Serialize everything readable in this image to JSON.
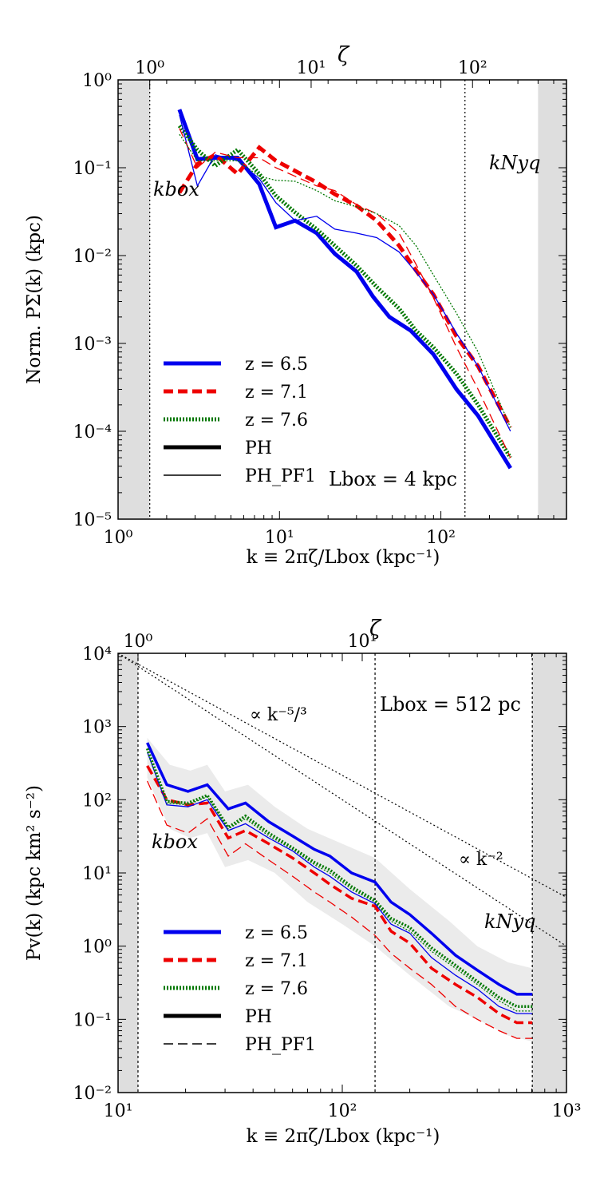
{
  "chart_data": [
    {
      "type": "line",
      "x_scale": "log",
      "y_scale": "log",
      "xlim": [
        1,
        600
      ],
      "ylim": [
        1e-05,
        1
      ],
      "xlabel": "k ≡ 2πζ/Lbox (kpc⁻¹)",
      "ylabel": "Norm. PΣ(k) (kpc)",
      "top_axis_label": "ζ",
      "top_axis_ticks": [
        "10⁰",
        "10¹",
        "10²"
      ],
      "x_ticks": [
        "10⁰",
        "10¹",
        "10²"
      ],
      "y_ticks": [
        "10⁻⁵",
        "10⁻⁴",
        "10⁻³",
        "10⁻²",
        "10⁻¹",
        "10⁰"
      ],
      "k_box": 1.571,
      "k_nyq": 141,
      "label_kbox": "kbox",
      "label_knyq": "kNyq",
      "annotation": "Lbox = 4 kpc",
      "legend": [
        {
          "label": "z = 6.5",
          "color": "#0000ee",
          "style": "solid",
          "width": "thick"
        },
        {
          "label": "z = 7.1",
          "color": "#ee0000",
          "style": "dashed",
          "width": "thick"
        },
        {
          "label": "z = 7.6",
          "color": "#007700",
          "style": "dotted",
          "width": "thick"
        },
        {
          "label": "PH",
          "color": "#000000",
          "style": "solid",
          "width": "thick"
        },
        {
          "label": "PH_PF1",
          "color": "#000000",
          "style": "solid",
          "width": "thin"
        }
      ],
      "legend_position": "lower-left",
      "series": [
        {
          "name": "z = 6.5",
          "run": "PH",
          "color": "#0000ee",
          "style": "solid",
          "width": 5,
          "x": [
            2.4,
            3.1,
            4.0,
            5.5,
            7.5,
            9.5,
            12.5,
            17,
            22,
            30,
            38,
            48,
            65,
            90,
            125,
            170,
            270
          ],
          "y": [
            0.46,
            0.125,
            0.13,
            0.13,
            0.065,
            0.021,
            0.025,
            0.018,
            0.0105,
            0.0066,
            0.0034,
            0.002,
            0.0014,
            0.00075,
            0.0003,
            0.00015,
            3.8e-05
          ]
        },
        {
          "name": "z = 7.1",
          "run": "PH",
          "color": "#ee0000",
          "style": "dashed",
          "width": 5,
          "x": [
            2.4,
            3.1,
            4.0,
            5.5,
            7.5,
            9.5,
            12.5,
            17,
            22,
            30,
            40,
            55,
            70,
            90,
            125,
            170,
            270
          ],
          "y": [
            0.052,
            0.11,
            0.14,
            0.085,
            0.17,
            0.12,
            0.092,
            0.068,
            0.05,
            0.037,
            0.025,
            0.013,
            0.0068,
            0.0036,
            0.0012,
            0.00055,
            0.00011
          ]
        },
        {
          "name": "z = 7.6",
          "run": "PH",
          "color": "#007700",
          "style": "dotted",
          "width": 5,
          "x": [
            2.4,
            3.1,
            4.0,
            5.5,
            7.5,
            9.5,
            12.5,
            17,
            22,
            30,
            40,
            55,
            70,
            90,
            125,
            170,
            270
          ],
          "y": [
            0.3,
            0.16,
            0.105,
            0.16,
            0.085,
            0.048,
            0.031,
            0.02,
            0.013,
            0.0077,
            0.0044,
            0.0025,
            0.0014,
            0.0009,
            0.00045,
            0.0002,
            5e-05
          ]
        },
        {
          "name": "z = 6.5",
          "run": "PH_PF1",
          "color": "#0000ee",
          "style": "solid",
          "width": 1.3,
          "x": [
            2.4,
            3.1,
            4.0,
            5.5,
            7.5,
            9.5,
            12.5,
            17,
            22,
            30,
            40,
            55,
            70,
            90,
            125,
            170,
            270
          ],
          "y": [
            0.4,
            0.062,
            0.14,
            0.12,
            0.075,
            0.04,
            0.025,
            0.028,
            0.02,
            0.018,
            0.016,
            0.011,
            0.0065,
            0.0036,
            0.0013,
            0.00055,
            0.0001
          ]
        },
        {
          "name": "z = 7.1",
          "run": "PH_PF1",
          "color": "#ee0000",
          "style": "dashed",
          "width": 1.3,
          "x": [
            2.4,
            3.1,
            4.0,
            5.5,
            7.5,
            9.5,
            12.5,
            17,
            22,
            30,
            40,
            55,
            70,
            90,
            125,
            170,
            270
          ],
          "y": [
            0.28,
            0.1,
            0.15,
            0.13,
            0.13,
            0.1,
            0.08,
            0.062,
            0.055,
            0.038,
            0.03,
            0.018,
            0.008,
            0.0033,
            0.0009,
            0.0003,
            5e-05
          ]
        },
        {
          "name": "z = 7.6",
          "run": "PH_PF1",
          "color": "#007700",
          "style": "dotted",
          "width": 1.3,
          "x": [
            2.4,
            3.1,
            4.0,
            5.5,
            7.5,
            9.5,
            12.5,
            17,
            22,
            30,
            40,
            55,
            70,
            90,
            125,
            170,
            270
          ],
          "y": [
            0.24,
            0.12,
            0.12,
            0.12,
            0.08,
            0.072,
            0.07,
            0.055,
            0.042,
            0.036,
            0.03,
            0.022,
            0.013,
            0.006,
            0.0022,
            0.0008,
            0.00011
          ]
        }
      ]
    },
    {
      "type": "line",
      "x_scale": "log",
      "y_scale": "log",
      "xlim": [
        10,
        1000
      ],
      "ylim": [
        0.01,
        10000
      ],
      "xlabel": "k ≡ 2πζ/Lbox (kpc⁻¹)",
      "ylabel": "Pv(k) (kpc km² s⁻²)",
      "top_axis_label": "ζ",
      "top_axis_ticks": [
        "10⁰",
        "10¹"
      ],
      "x_ticks": [
        "10¹",
        "10²",
        "10³"
      ],
      "y_ticks": [
        "10⁻²",
        "10⁻¹",
        "10⁰",
        "10¹",
        "10²",
        "10³",
        "10⁴"
      ],
      "k_box": 12.27,
      "k_nyq": 704,
      "k_mid": 140,
      "label_kbox": "kbox",
      "label_knyq": "kNyq",
      "annotation": "Lbox = 512 pc",
      "reference_lines": [
        {
          "label": "∝ k⁻⁵/³",
          "slope": -1.6667,
          "x0": 10,
          "y0": 10000
        },
        {
          "label": "∝ k⁻²",
          "slope": -2,
          "x0": 10,
          "y0": 10000
        }
      ],
      "legend": [
        {
          "label": "z = 6.5",
          "color": "#0000ee",
          "style": "solid",
          "width": "thick"
        },
        {
          "label": "z = 7.1",
          "color": "#ee0000",
          "style": "dashed",
          "width": "thick"
        },
        {
          "label": "z = 7.6",
          "color": "#007700",
          "style": "dotted",
          "width": "thick"
        },
        {
          "label": "PH",
          "color": "#000000",
          "style": "solid",
          "width": "thick"
        },
        {
          "label": "PH_PF1",
          "color": "#000000",
          "style": "dashed",
          "width": "thin"
        }
      ],
      "legend_position": "lower-left",
      "shaded_band": {
        "x": [
          13.5,
          17,
          21,
          25,
          30,
          38,
          50,
          70,
          100,
          140,
          200,
          300,
          400,
          550,
          700
        ],
        "upper": [
          700,
          300,
          250,
          300,
          130,
          160,
          80,
          40,
          25,
          16,
          6,
          2.2,
          1,
          0.6,
          0.5
        ],
        "lower": [
          200,
          40,
          30,
          35,
          12,
          15,
          10,
          4,
          2,
          1,
          0.4,
          0.15,
          0.1,
          0.06,
          0.05
        ]
      },
      "series": [
        {
          "name": "z = 6.5",
          "run": "PH",
          "color": "#0000ee",
          "style": "solid",
          "width": 3.5,
          "x": [
            13.5,
            16.5,
            20.5,
            25,
            31,
            37,
            47,
            60,
            75,
            88,
            110,
            140,
            165,
            200,
            250,
            320,
            400,
            500,
            600,
            704
          ],
          "y": [
            600,
            160,
            130,
            160,
            75,
            90,
            50,
            32,
            21,
            17,
            10,
            7.5,
            4,
            2.7,
            1.5,
            0.75,
            0.47,
            0.3,
            0.22,
            0.22
          ]
        },
        {
          "name": "z = 7.1",
          "run": "PH",
          "color": "#ee0000",
          "style": "dashed",
          "width": 3.5,
          "x": [
            13.5,
            16.5,
            20.5,
            25,
            31,
            37,
            47,
            60,
            75,
            88,
            110,
            140,
            165,
            200,
            250,
            320,
            400,
            500,
            600,
            704
          ],
          "y": [
            290,
            100,
            85,
            90,
            30,
            38,
            25,
            16,
            10,
            7,
            4.5,
            3.5,
            1.6,
            1.1,
            0.5,
            0.3,
            0.2,
            0.12,
            0.09,
            0.09
          ]
        },
        {
          "name": "z = 7.6",
          "run": "PH",
          "color": "#007700",
          "style": "dotted",
          "width": 3.5,
          "x": [
            13.5,
            16.5,
            20.5,
            25,
            31,
            37,
            47,
            60,
            75,
            88,
            110,
            140,
            165,
            200,
            250,
            320,
            400,
            500,
            600,
            704
          ],
          "y": [
            500,
            95,
            90,
            115,
            42,
            60,
            35,
            22,
            14,
            11,
            6.5,
            4.2,
            2.4,
            1.8,
            0.95,
            0.55,
            0.33,
            0.2,
            0.15,
            0.15
          ]
        },
        {
          "name": "z = 6.5",
          "run": "PH_PF1",
          "color": "#0000ee",
          "style": "solid",
          "width": 1.3,
          "x": [
            13.5,
            16.5,
            20.5,
            25,
            31,
            37,
            47,
            60,
            75,
            88,
            110,
            140,
            165,
            200,
            250,
            320,
            400,
            500,
            600,
            704
          ],
          "y": [
            450,
            85,
            80,
            100,
            38,
            47,
            30,
            20,
            12,
            9,
            5.5,
            3.8,
            2,
            1.5,
            0.7,
            0.4,
            0.26,
            0.15,
            0.12,
            0.12
          ]
        },
        {
          "name": "z = 7.1",
          "run": "PH_PF1",
          "color": "#ee0000",
          "style": "dashed",
          "width": 1.3,
          "x": [
            13.5,
            16.5,
            20.5,
            25,
            31,
            37,
            47,
            60,
            75,
            88,
            110,
            140,
            165,
            200,
            250,
            320,
            400,
            500,
            600,
            704
          ],
          "y": [
            180,
            45,
            35,
            55,
            17,
            25,
            15,
            9,
            5.5,
            4,
            2.5,
            1.4,
            0.8,
            0.5,
            0.3,
            0.15,
            0.1,
            0.07,
            0.055,
            0.055
          ]
        },
        {
          "name": "z = 7.6",
          "run": "PH_PF1",
          "color": "#007700",
          "style": "dotted",
          "width": 1.3,
          "x": [
            13.5,
            16.5,
            20.5,
            25,
            31,
            37,
            47,
            60,
            75,
            88,
            110,
            140,
            165,
            200,
            250,
            320,
            400,
            500,
            600,
            704
          ],
          "y": [
            450,
            90,
            85,
            110,
            40,
            55,
            32,
            21,
            13,
            10,
            6,
            4,
            2.2,
            1.6,
            0.85,
            0.5,
            0.3,
            0.18,
            0.13,
            0.13
          ]
        }
      ]
    }
  ]
}
